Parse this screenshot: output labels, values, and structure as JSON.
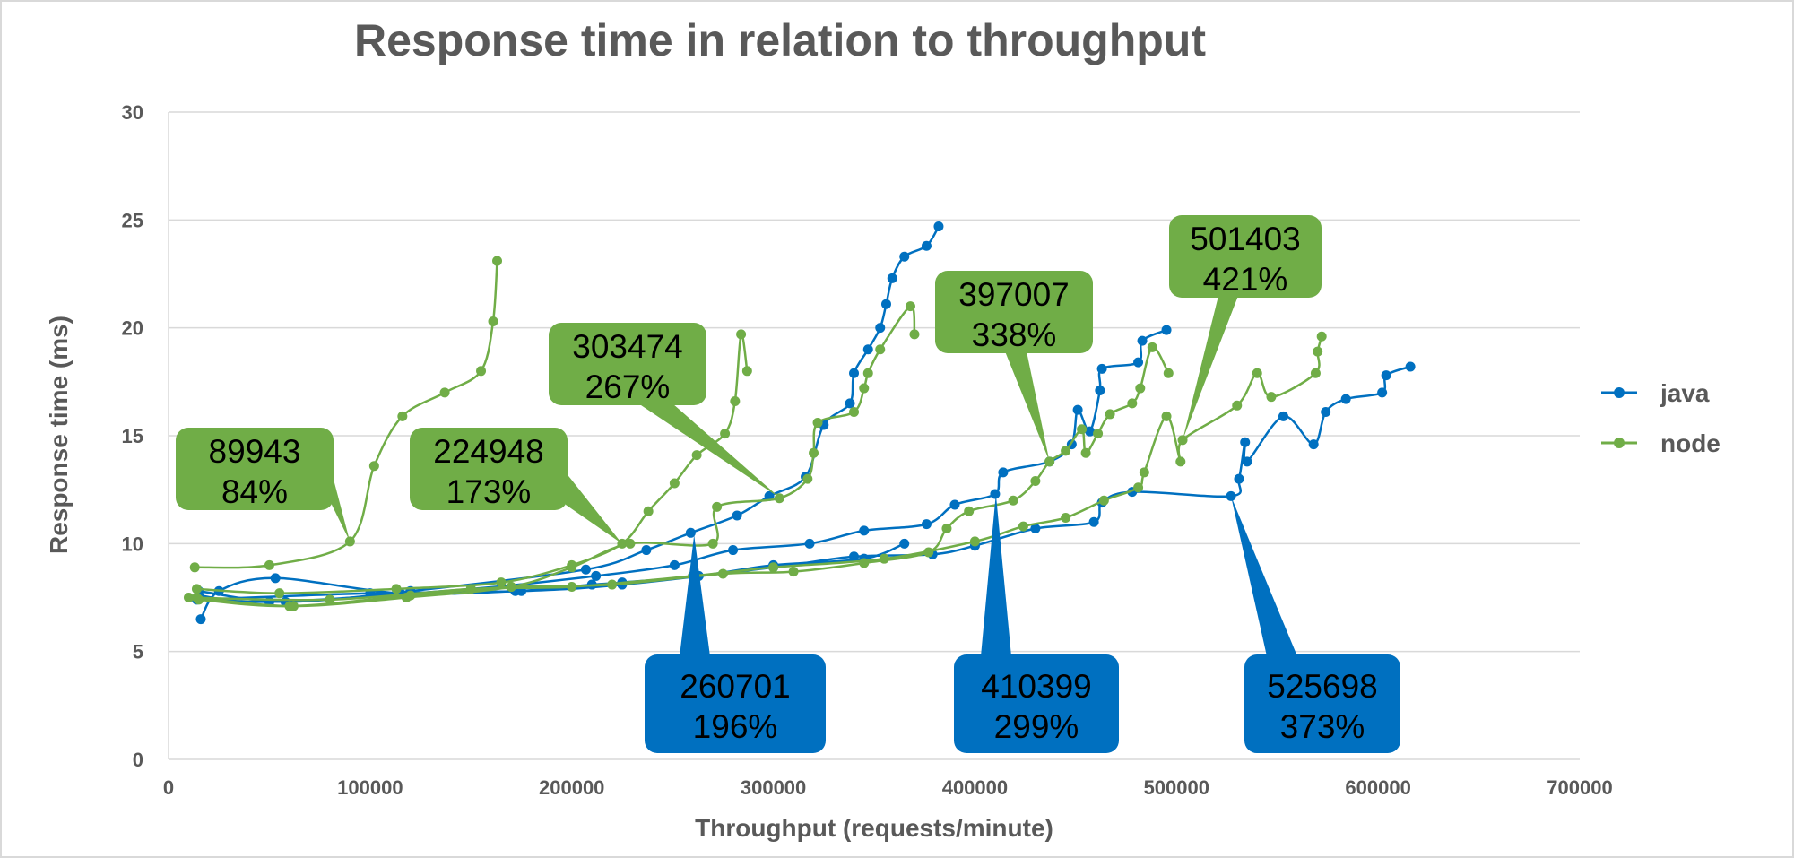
{
  "chart_data": {
    "type": "line",
    "title": "Response time in relation to throughput",
    "xlabel": "Throughput (requests/minute)",
    "ylabel": "Response time (ms)",
    "xlim": [
      0,
      700000
    ],
    "ylim": [
      0,
      30
    ],
    "xticks": [
      0,
      100000,
      200000,
      300000,
      400000,
      500000,
      600000,
      700000
    ],
    "yticks": [
      0,
      5,
      10,
      15,
      20,
      25,
      30
    ],
    "grid": "horizontal",
    "legend_position": "right",
    "series": [
      {
        "name": "java",
        "color": "#0070C0",
        "runs": [
          [
            [
              16000,
              6.5
            ],
            [
              25000,
              7.8
            ],
            [
              53000,
              8.4
            ],
            [
              115000,
              7.7
            ],
            [
              172000,
              7.8
            ],
            [
              210000,
              8.1
            ],
            [
              225000,
              8.2
            ],
            [
              263000,
              8.5
            ],
            [
              300000,
              9.0
            ],
            [
              345000,
              9.3
            ],
            [
              365000,
              10.0
            ]
          ],
          [
            [
              15000,
              7.8
            ],
            [
              58000,
              7.3
            ],
            [
              120000,
              7.8
            ],
            [
              207000,
              8.8
            ],
            [
              237000,
              9.7
            ],
            [
              259000,
              10.5
            ],
            [
              282000,
              11.3
            ],
            [
              298000,
              12.2
            ],
            [
              316000,
              13.1
            ],
            [
              325000,
              15.5
            ],
            [
              338000,
              16.5
            ],
            [
              340000,
              17.9
            ],
            [
              347000,
              19.0
            ],
            [
              353000,
              20.0
            ],
            [
              356000,
              21.1
            ],
            [
              359000,
              22.3
            ],
            [
              365000,
              23.3
            ],
            [
              376000,
              23.8
            ],
            [
              382000,
              24.7
            ]
          ],
          [
            [
              15000,
              7.6
            ],
            [
              50000,
              7.3
            ],
            [
              150000,
              7.9
            ],
            [
              212000,
              8.5
            ],
            [
              251000,
              9.0
            ],
            [
              280000,
              9.7
            ],
            [
              318000,
              10.0
            ],
            [
              345000,
              10.6
            ],
            [
              376000,
              10.9
            ],
            [
              390000,
              11.8
            ],
            [
              410000,
              12.3
            ],
            [
              414000,
              13.3
            ],
            [
              437000,
              13.8
            ],
            [
              448000,
              14.6
            ],
            [
              451000,
              16.2
            ],
            [
              457000,
              15.2
            ],
            [
              462000,
              17.1
            ],
            [
              463000,
              18.1
            ],
            [
              481000,
              18.4
            ],
            [
              483000,
              19.4
            ],
            [
              495000,
              19.9
            ]
          ],
          [
            [
              14000,
              7.4
            ],
            [
              100000,
              7.7
            ],
            [
              175000,
              7.8
            ],
            [
              225000,
              8.1
            ],
            [
              300000,
              8.9
            ],
            [
              340000,
              9.4
            ],
            [
              379000,
              9.5
            ],
            [
              400000,
              9.9
            ],
            [
              430000,
              10.7
            ],
            [
              459000,
              11.0
            ],
            [
              463000,
              11.9
            ],
            [
              478000,
              12.4
            ],
            [
              527000,
              12.2
            ],
            [
              531000,
              13.0
            ],
            [
              534000,
              14.7
            ],
            [
              535000,
              13.8
            ],
            [
              553000,
              15.9
            ],
            [
              568000,
              14.6
            ],
            [
              574000,
              16.1
            ],
            [
              584000,
              16.7
            ],
            [
              602000,
              17.0
            ],
            [
              604000,
              17.8
            ],
            [
              616000,
              18.2
            ]
          ]
        ]
      },
      {
        "name": "node",
        "color": "#70AD47",
        "runs": [
          [
            [
              13000,
              8.9
            ],
            [
              50000,
              9.0
            ],
            [
              90000,
              10.1
            ],
            [
              102000,
              13.6
            ],
            [
              116000,
              15.9
            ],
            [
              137000,
              17.0
            ],
            [
              155000,
              18.0
            ],
            [
              161000,
              20.3
            ],
            [
              163000,
              23.1
            ]
          ],
          [
            [
              14000,
              7.9
            ],
            [
              55000,
              7.7
            ],
            [
              113000,
              7.9
            ],
            [
              165000,
              8.2
            ],
            [
              200000,
              9.0
            ],
            [
              225000,
              10.0
            ],
            [
              238000,
              11.5
            ],
            [
              251000,
              12.8
            ],
            [
              262000,
              14.1
            ],
            [
              276000,
              15.1
            ],
            [
              281000,
              16.6
            ],
            [
              284000,
              19.7
            ],
            [
              287000,
              18.0
            ]
          ],
          [
            [
              14000,
              7.5
            ],
            [
              62000,
              7.1
            ],
            [
              118000,
              7.5
            ],
            [
              170000,
              8.0
            ],
            [
              200000,
              8.9
            ],
            [
              229000,
              10.0
            ],
            [
              270000,
              10.0
            ],
            [
              272000,
              11.7
            ],
            [
              303000,
              12.1
            ],
            [
              317000,
              13.0
            ],
            [
              320000,
              14.2
            ],
            [
              322000,
              15.6
            ],
            [
              340000,
              16.1
            ],
            [
              345000,
              17.2
            ],
            [
              347000,
              17.9
            ],
            [
              353000,
              19.0
            ],
            [
              368000,
              21.0
            ],
            [
              370000,
              19.7
            ]
          ],
          [
            [
              15000,
              7.4
            ],
            [
              60000,
              7.1
            ],
            [
              120000,
              7.6
            ],
            [
              170000,
              8.0
            ],
            [
              220000,
              8.1
            ],
            [
              275000,
              8.6
            ],
            [
              310000,
              8.7
            ],
            [
              345000,
              9.1
            ],
            [
              377000,
              9.6
            ],
            [
              386000,
              10.7
            ],
            [
              397000,
              11.5
            ],
            [
              419000,
              12.0
            ],
            [
              430000,
              12.9
            ],
            [
              437000,
              13.8
            ],
            [
              445000,
              14.3
            ],
            [
              453000,
              15.3
            ],
            [
              455000,
              14.2
            ],
            [
              461000,
              15.1
            ],
            [
              467000,
              16.0
            ],
            [
              478000,
              16.5
            ],
            [
              482000,
              17.2
            ],
            [
              488000,
              19.1
            ],
            [
              496000,
              17.9
            ]
          ],
          [
            [
              10000,
              7.5
            ],
            [
              80000,
              7.4
            ],
            [
              150000,
              7.9
            ],
            [
              200000,
              8.0
            ],
            [
              260000,
              8.5
            ],
            [
              300000,
              8.9
            ],
            [
              355000,
              9.3
            ],
            [
              400000,
              10.1
            ],
            [
              424000,
              10.8
            ],
            [
              445000,
              11.2
            ],
            [
              464000,
              12.0
            ],
            [
              481000,
              12.6
            ],
            [
              484000,
              13.3
            ],
            [
              495000,
              15.9
            ],
            [
              502000,
              13.8
            ],
            [
              503000,
              14.8
            ],
            [
              530000,
              16.4
            ],
            [
              540000,
              17.9
            ],
            [
              547000,
              16.8
            ],
            [
              569000,
              17.9
            ],
            [
              570000,
              18.9
            ],
            [
              572000,
              19.6
            ]
          ]
        ]
      }
    ],
    "annotations": [
      {
        "line1": "89943",
        "line2": "84%",
        "x": 89943,
        "y": 10.1,
        "series": "node",
        "box_color": "#70AD47"
      },
      {
        "line1": "224948",
        "line2": "173%",
        "x": 224948,
        "y": 10.0,
        "series": "node",
        "box_color": "#70AD47"
      },
      {
        "line1": "303474",
        "line2": "267%",
        "x": 303474,
        "y": 12.1,
        "series": "node",
        "box_color": "#70AD47"
      },
      {
        "line1": "397007",
        "line2": "338%",
        "x": 437000,
        "y": 13.8,
        "series": "node",
        "box_color": "#70AD47"
      },
      {
        "line1": "501403",
        "line2": "421%",
        "x": 503000,
        "y": 14.8,
        "series": "node",
        "box_color": "#70AD47"
      },
      {
        "line1": "260701",
        "line2": "196%",
        "x": 260701,
        "y": 10.4,
        "series": "java",
        "box_color": "#0070C0"
      },
      {
        "line1": "410399",
        "line2": "299%",
        "x": 410399,
        "y": 12.3,
        "series": "java",
        "box_color": "#0070C0"
      },
      {
        "line1": "525698",
        "line2": "373%",
        "x": 527000,
        "y": 12.2,
        "series": "java",
        "box_color": "#0070C0"
      }
    ]
  }
}
